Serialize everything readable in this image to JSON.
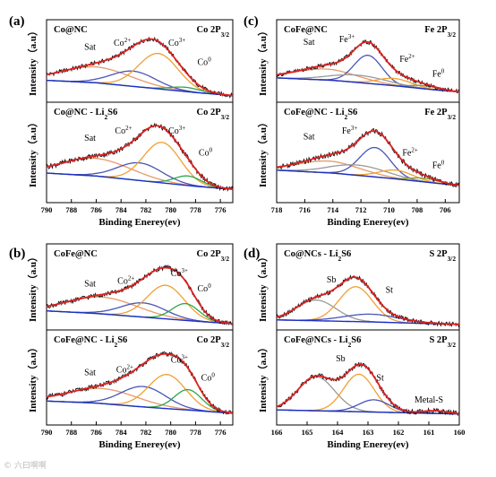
{
  "watermark": "© 六曰啊啊",
  "colors": {
    "raw": "#111111",
    "envelope": "#e02020",
    "background": "#1c2ec9",
    "sat": "#e69a6a",
    "orange": "#f0a030",
    "blue": "#4a55b5",
    "green": "#2ea64a",
    "gray": "#9a9a9a",
    "olive": "#8c9a2c"
  },
  "chart_data": [
    {
      "id": "a",
      "letter": "(a)",
      "type": "line",
      "xlabel": "Binding Enerey(ev)",
      "ylabel": "Intensity（a.u）",
      "xlim": [
        790,
        775
      ],
      "xticks": [
        790,
        788,
        786,
        784,
        782,
        780,
        778,
        776
      ],
      "subpanels": [
        {
          "sample_main": "Co@NC",
          "sample_sub": "",
          "sample_tail": "",
          "orbital": "Co 2P",
          "orbital_sub": "3/2",
          "background": [
            [
              790,
              0.3
            ],
            [
              786,
              0.26
            ],
            [
              782,
              0.18
            ],
            [
              778,
              0.1
            ],
            [
              775,
              0.05
            ]
          ],
          "peaks": [
            {
              "color": "sat",
              "center": 786.0,
              "amp": 0.26,
              "width": 2.8
            },
            {
              "color": "blue",
              "center": 783.0,
              "amp": 0.25,
              "width": 1.8
            },
            {
              "color": "orange",
              "center": 781.0,
              "amp": 0.58,
              "width": 1.6
            },
            {
              "color": "green",
              "center": 778.8,
              "amp": 0.07,
              "width": 1.2
            }
          ],
          "labels": [
            {
              "x": 786.5,
              "y": 0.8,
              "text": "Sat",
              "sup": ""
            },
            {
              "x": 783.9,
              "y": 0.87,
              "text": "Co",
              "sup": "2+"
            },
            {
              "x": 779.5,
              "y": 0.87,
              "text": "Co",
              "sup": "3+"
            },
            {
              "x": 777.3,
              "y": 0.55,
              "text": "Co",
              "sup": "0"
            }
          ]
        },
        {
          "sample_main": "Co@NC - Li",
          "sample_sub": "2",
          "sample_tail": "S6",
          "orbital": "Co 2P",
          "orbital_sub": "3/2",
          "background": [
            [
              790,
              0.28
            ],
            [
              786,
              0.24
            ],
            [
              782,
              0.17
            ],
            [
              778,
              0.1
            ],
            [
              775,
              0.06
            ]
          ],
          "peaks": [
            {
              "color": "sat",
              "center": 786.0,
              "amp": 0.24,
              "width": 2.8
            },
            {
              "color": "blue",
              "center": 782.5,
              "amp": 0.24,
              "width": 1.8
            },
            {
              "color": "orange",
              "center": 780.7,
              "amp": 0.55,
              "width": 1.5
            },
            {
              "color": "green",
              "center": 778.6,
              "amp": 0.13,
              "width": 1.1
            }
          ],
          "labels": [
            {
              "x": 786.5,
              "y": 0.72,
              "text": "Sat",
              "sup": ""
            },
            {
              "x": 783.8,
              "y": 0.82,
              "text": "Co",
              "sup": "2+"
            },
            {
              "x": 779.5,
              "y": 0.82,
              "text": "Co",
              "sup": "3+"
            },
            {
              "x": 777.2,
              "y": 0.52,
              "text": "Co",
              "sup": "0"
            }
          ]
        }
      ]
    },
    {
      "id": "b",
      "letter": "(b)",
      "type": "line",
      "xlabel": "Binding Enerey(ev)",
      "ylabel": "Intensity（a.u）",
      "xlim": [
        790,
        775
      ],
      "xticks": [
        790,
        788,
        786,
        784,
        782,
        780,
        778,
        776
      ],
      "subpanels": [
        {
          "sample_main": "CoFe@NC",
          "sample_sub": "",
          "sample_tail": "",
          "orbital": "Co 2P",
          "orbital_sub": "3/2",
          "background": [
            [
              790,
              0.24
            ],
            [
              786,
              0.2
            ],
            [
              782,
              0.14
            ],
            [
              778,
              0.08
            ],
            [
              775,
              0.04
            ]
          ],
          "peaks": [
            {
              "color": "sat",
              "center": 785.5,
              "amp": 0.26,
              "width": 2.8
            },
            {
              "color": "blue",
              "center": 782.2,
              "amp": 0.22,
              "width": 1.8
            },
            {
              "color": "orange",
              "center": 780.4,
              "amp": 0.52,
              "width": 1.5
            },
            {
              "color": "green",
              "center": 778.8,
              "amp": 0.26,
              "width": 1.1
            }
          ],
          "labels": [
            {
              "x": 786.5,
              "y": 0.62,
              "text": "Sat",
              "sup": ""
            },
            {
              "x": 783.6,
              "y": 0.66,
              "text": "Co",
              "sup": "2+"
            },
            {
              "x": 779.3,
              "y": 0.78,
              "text": "Co",
              "sup": "3+"
            },
            {
              "x": 777.3,
              "y": 0.54,
              "text": "Co",
              "sup": "0"
            }
          ]
        },
        {
          "sample_main": "CoFe@NC - Li",
          "sample_sub": "2",
          "sample_tail": "S6",
          "orbital": "Co 2P",
          "orbital_sub": "3/2",
          "background": [
            [
              790,
              0.22
            ],
            [
              786,
              0.19
            ],
            [
              782,
              0.13
            ],
            [
              778,
              0.08
            ],
            [
              775,
              0.04
            ]
          ],
          "peaks": [
            {
              "color": "sat",
              "center": 785.5,
              "amp": 0.22,
              "width": 2.8
            },
            {
              "color": "blue",
              "center": 782.2,
              "amp": 0.3,
              "width": 1.8
            },
            {
              "color": "orange",
              "center": 780.3,
              "amp": 0.5,
              "width": 1.5
            },
            {
              "color": "green",
              "center": 778.6,
              "amp": 0.3,
              "width": 1.1
            }
          ],
          "labels": [
            {
              "x": 786.5,
              "y": 0.6,
              "text": "Sat",
              "sup": ""
            },
            {
              "x": 783.7,
              "y": 0.64,
              "text": "Co",
              "sup": "2+"
            },
            {
              "x": 779.3,
              "y": 0.78,
              "text": "Co",
              "sup": "3+"
            },
            {
              "x": 777.0,
              "y": 0.52,
              "text": "Co",
              "sup": "0"
            }
          ]
        }
      ]
    },
    {
      "id": "c",
      "letter": "(c)",
      "type": "line",
      "xlabel": "Binding Enerey(ev)",
      "ylabel": "Intensity（a.u）",
      "xlim": [
        718,
        705
      ],
      "xticks": [
        718,
        716,
        714,
        712,
        710,
        708,
        706
      ],
      "subpanels": [
        {
          "sample_main": "CoFe@NC",
          "sample_sub": "",
          "sample_tail": "",
          "orbital": "Fe 2P",
          "orbital_sub": "3/2",
          "background": [
            [
              718,
              0.34
            ],
            [
              714,
              0.3
            ],
            [
              710,
              0.22
            ],
            [
              707,
              0.15
            ],
            [
              705,
              0.11
            ]
          ],
          "peaks": [
            {
              "color": "sat",
              "center": 714.5,
              "amp": 0.18,
              "width": 2.2
            },
            {
              "color": "blue",
              "center": 711.5,
              "amp": 0.46,
              "width": 1.0
            },
            {
              "color": "gray",
              "center": 712.2,
              "amp": 0.12,
              "width": 2.0
            },
            {
              "color": "orange",
              "center": 709.6,
              "amp": 0.12,
              "width": 1.2
            },
            {
              "color": "olive",
              "center": 707.5,
              "amp": 0.05,
              "width": 1.0
            }
          ],
          "labels": [
            {
              "x": 715.7,
              "y": 0.88,
              "text": "Sat",
              "sup": ""
            },
            {
              "x": 713.0,
              "y": 0.93,
              "text": "Fe",
              "sup": "3+"
            },
            {
              "x": 708.7,
              "y": 0.6,
              "text": "Fe",
              "sup": "2+"
            },
            {
              "x": 706.5,
              "y": 0.36,
              "text": "Fe",
              "sup": "0"
            }
          ]
        },
        {
          "sample_main": "CoFe@NC - Li",
          "sample_sub": "2",
          "sample_tail": "S6",
          "orbital": "Fe 2P",
          "orbital_sub": "3/2",
          "background": [
            [
              718,
              0.32
            ],
            [
              714,
              0.28
            ],
            [
              710,
              0.21
            ],
            [
              707,
              0.15
            ],
            [
              705,
              0.11
            ]
          ],
          "peaks": [
            {
              "color": "sat",
              "center": 714.3,
              "amp": 0.16,
              "width": 2.2
            },
            {
              "color": "blue",
              "center": 711.0,
              "amp": 0.4,
              "width": 1.1
            },
            {
              "color": "gray",
              "center": 712.2,
              "amp": 0.14,
              "width": 2.0
            },
            {
              "color": "orange",
              "center": 709.5,
              "amp": 0.12,
              "width": 1.2
            },
            {
              "color": "olive",
              "center": 707.5,
              "amp": 0.05,
              "width": 1.0
            }
          ],
          "labels": [
            {
              "x": 715.7,
              "y": 0.74,
              "text": "Sat",
              "sup": ""
            },
            {
              "x": 712.8,
              "y": 0.82,
              "text": "Fe",
              "sup": "3+"
            },
            {
              "x": 708.5,
              "y": 0.52,
              "text": "Fe",
              "sup": "2+"
            },
            {
              "x": 706.5,
              "y": 0.35,
              "text": "Fe",
              "sup": "0"
            }
          ]
        }
      ]
    },
    {
      "id": "d",
      "letter": "(d)",
      "type": "line",
      "xlabel": "Binding Enerey(ev)",
      "ylabel": "Intensity（a.u）",
      "xlim": [
        166,
        160
      ],
      "xticks": [
        166,
        165,
        164,
        163,
        162,
        161,
        160
      ],
      "subpanels": [
        {
          "sample_main": "Co@NCs - Li",
          "sample_sub": "2",
          "sample_tail": "S6",
          "orbital": "S 2P",
          "orbital_sub": "3/2",
          "background": [
            [
              166,
              0.1
            ],
            [
              163,
              0.07
            ],
            [
              160,
              0.03
            ]
          ],
          "peaks": [
            {
              "color": "gray",
              "center": 164.7,
              "amp": 0.32,
              "width": 0.65
            },
            {
              "color": "orange",
              "center": 163.4,
              "amp": 0.54,
              "width": 0.55
            },
            {
              "color": "blue",
              "center": 162.9,
              "amp": 0.12,
              "width": 0.9
            }
          ],
          "labels": [
            {
              "x": 164.2,
              "y": 0.68,
              "text": "Sb",
              "sup": ""
            },
            {
              "x": 162.3,
              "y": 0.52,
              "text": "St",
              "sup": ""
            }
          ]
        },
        {
          "sample_main": "CoFe@NCs - Li",
          "sample_sub": "2",
          "sample_tail": "S6",
          "orbital": "S 2P",
          "orbital_sub": "3/2",
          "background": [
            [
              166,
              0.09
            ],
            [
              163,
              0.06
            ],
            [
              160,
              0.03
            ]
          ],
          "peaks": [
            {
              "color": "gray",
              "center": 164.7,
              "amp": 0.5,
              "width": 0.6
            },
            {
              "color": "orange",
              "center": 163.3,
              "amp": 0.55,
              "width": 0.5
            },
            {
              "color": "blue",
              "center": 162.8,
              "amp": 0.18,
              "width": 0.5
            },
            {
              "color": "olive",
              "center": 160.8,
              "amp": 0.04,
              "width": 0.4
            }
          ],
          "labels": [
            {
              "x": 163.9,
              "y": 0.8,
              "text": "Sb",
              "sup": ""
            },
            {
              "x": 162.6,
              "y": 0.52,
              "text": "St",
              "sup": ""
            },
            {
              "x": 161.0,
              "y": 0.2,
              "text": "Metal-S",
              "sup": ""
            }
          ]
        }
      ]
    }
  ]
}
